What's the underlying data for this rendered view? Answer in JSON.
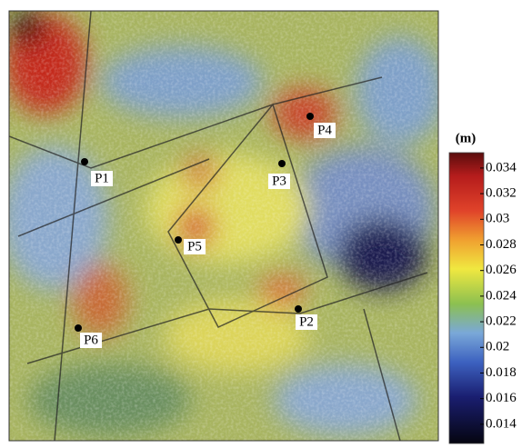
{
  "map": {
    "points": [
      {
        "label": "P1"
      },
      {
        "label": "P2"
      },
      {
        "label": "P3"
      },
      {
        "label": "P4"
      },
      {
        "label": "P5"
      },
      {
        "label": "P6"
      }
    ]
  },
  "colorbar": {
    "unit": "(m)",
    "clim": [
      0.0125,
      0.0352
    ],
    "ticks": [
      0.034,
      0.032,
      0.03,
      0.028,
      0.026,
      0.024,
      0.022,
      0.02,
      0.018,
      0.016,
      0.014
    ]
  }
}
